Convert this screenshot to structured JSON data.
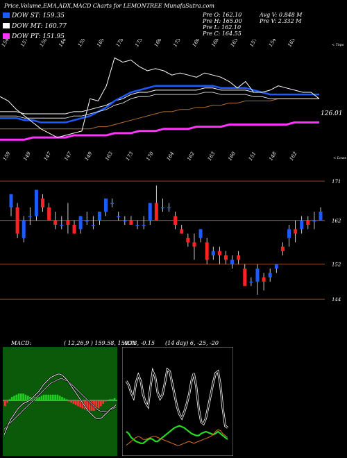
{
  "header": {
    "title": "Price,Volume,EMA,ADX,MACD Charts for LEMONTREE MunafaSutra.com",
    "indicators": [
      {
        "label": "DOW ST: 159.35",
        "color": "#1e5bff"
      },
      {
        "label": "DOW MT: 160.77",
        "color": "#ffffff"
      },
      {
        "label": "DOW PT: 151.95",
        "color": "#ff33ff"
      }
    ],
    "prev": [
      "Pre   O: 162.10",
      "Pre   H: 165.00",
      "Pre   L: 162.10",
      "Pre   C: 164.55"
    ],
    "stats": [
      "Avg V: 0.848 M",
      "Pre   V: 2.332  M"
    ]
  },
  "chart_data": [
    {
      "type": "line",
      "name": "price-ema-panel",
      "top_labels": [
        "154",
        "157",
        "150",
        "144",
        "159",
        "169",
        "178",
        "175",
        "166",
        "175",
        "166",
        "168",
        "163",
        "157",
        "154",
        "163"
      ],
      "bottom_labels": [
        "159",
        "149",
        "147",
        "147",
        "149",
        "163",
        "173",
        "170",
        "164",
        "162",
        "163",
        "160",
        "151",
        "148",
        "162"
      ],
      "corner_top": "< Tops",
      "corner_bottom": "< Lows",
      "last_value_label": "126.01",
      "series": [
        {
          "name": "price",
          "color": "#ffffff",
          "values": [
            158,
            156,
            152,
            149,
            146,
            143,
            141,
            139,
            140,
            141,
            142,
            157,
            156,
            163,
            176,
            174,
            175,
            172,
            170,
            171,
            170,
            168,
            169,
            168,
            167,
            169,
            168,
            167,
            165,
            162,
            165,
            160,
            160,
            161,
            163,
            162,
            161,
            160,
            160,
            157
          ]
        },
        {
          "name": "ema-short",
          "color": "#1e5bff",
          "values": [
            148,
            148,
            148,
            147,
            147,
            146,
            146,
            146,
            146,
            147,
            148,
            149,
            151,
            153,
            156,
            158,
            160,
            161,
            162,
            163,
            163,
            163,
            163,
            163,
            163,
            163,
            163,
            162,
            162,
            162,
            162,
            161,
            160,
            159,
            159,
            159,
            159,
            159,
            159,
            159
          ]
        },
        {
          "name": "ema-mid",
          "color": "#ffffff",
          "values": [
            151,
            151,
            151,
            150,
            150,
            150,
            150,
            150,
            150,
            151,
            151,
            152,
            153,
            154,
            156,
            157,
            159,
            160,
            160,
            161,
            161,
            161,
            161,
            161,
            161,
            162,
            162,
            161,
            161,
            161,
            161,
            160,
            160,
            159,
            159,
            159,
            159,
            159,
            159,
            159
          ]
        },
        {
          "name": "ema-long",
          "color": "#b07030",
          "values": [
            143,
            143,
            143,
            143,
            143,
            143,
            143,
            143,
            143,
            143,
            143,
            143,
            144,
            144,
            145,
            146,
            147,
            148,
            149,
            150,
            151,
            151,
            152,
            152,
            153,
            153,
            154,
            154,
            155,
            155,
            156,
            156,
            156,
            156,
            157,
            157,
            157,
            157,
            157,
            157
          ]
        },
        {
          "name": "ema-longest",
          "color": "#ff33ff",
          "values": [
            138,
            138,
            138,
            138,
            139,
            139,
            139,
            139,
            139,
            140,
            140,
            140,
            140,
            140,
            141,
            141,
            141,
            142,
            142,
            142,
            143,
            143,
            143,
            143,
            144,
            144,
            144,
            144,
            145,
            145,
            145,
            145,
            145,
            145,
            145,
            145,
            146,
            146,
            146,
            146
          ]
        }
      ]
    },
    {
      "type": "candlestick",
      "name": "candles-panel",
      "y_ticks": [
        "171",
        "162",
        "152",
        "144"
      ],
      "candles": [
        {
          "o": 165,
          "h": 168,
          "l": 163,
          "c": 168
        },
        {
          "o": 165,
          "h": 166,
          "l": 158,
          "c": 159
        },
        {
          "o": 158,
          "h": 163,
          "l": 157,
          "c": 162
        },
        {
          "o": 163,
          "h": 165,
          "l": 161,
          "c": 163
        },
        {
          "o": 163,
          "h": 169,
          "l": 162,
          "c": 169
        },
        {
          "o": 167,
          "h": 168,
          "l": 164,
          "c": 165
        },
        {
          "o": 165,
          "h": 166,
          "l": 162,
          "c": 162
        },
        {
          "o": 162,
          "h": 164,
          "l": 160,
          "c": 161
        },
        {
          "o": 161,
          "h": 163,
          "l": 160,
          "c": 161
        },
        {
          "o": 162,
          "h": 166,
          "l": 159,
          "c": 161
        },
        {
          "o": 161,
          "h": 162,
          "l": 159,
          "c": 159
        },
        {
          "o": 160,
          "h": 163,
          "l": 159,
          "c": 163
        },
        {
          "o": 162,
          "h": 164,
          "l": 161,
          "c": 162
        },
        {
          "o": 161,
          "h": 163,
          "l": 160,
          "c": 161
        },
        {
          "o": 162,
          "h": 164,
          "l": 161,
          "c": 164
        },
        {
          "o": 164,
          "h": 167,
          "l": 163,
          "c": 167
        },
        {
          "o": 166,
          "h": 167,
          "l": 165,
          "c": 166
        },
        {
          "o": 163,
          "h": 164,
          "l": 162,
          "c": 163
        },
        {
          "o": 162,
          "h": 163,
          "l": 161,
          "c": 162
        },
        {
          "o": 162,
          "h": 163,
          "l": 161,
          "c": 161
        },
        {
          "o": 161,
          "h": 162,
          "l": 160,
          "c": 161
        },
        {
          "o": 161,
          "h": 163,
          "l": 160,
          "c": 161
        },
        {
          "o": 162,
          "h": 166,
          "l": 161,
          "c": 166
        },
        {
          "o": 166,
          "h": 170,
          "l": 162,
          "c": 162
        },
        {
          "o": 165,
          "h": 167,
          "l": 164,
          "c": 165
        },
        {
          "o": 165,
          "h": 166,
          "l": 164,
          "c": 165
        },
        {
          "o": 163,
          "h": 164,
          "l": 160,
          "c": 161
        },
        {
          "o": 160,
          "h": 161,
          "l": 159,
          "c": 159
        },
        {
          "o": 158,
          "h": 159,
          "l": 156,
          "c": 157
        },
        {
          "o": 157,
          "h": 159,
          "l": 153,
          "c": 156
        },
        {
          "o": 158,
          "h": 160,
          "l": 157,
          "c": 160
        },
        {
          "o": 157,
          "h": 158,
          "l": 152,
          "c": 153
        },
        {
          "o": 154,
          "h": 156,
          "l": 153,
          "c": 155
        },
        {
          "o": 155,
          "h": 156,
          "l": 152,
          "c": 154
        },
        {
          "o": 154,
          "h": 155,
          "l": 152,
          "c": 153
        },
        {
          "o": 152,
          "h": 154,
          "l": 151,
          "c": 153
        },
        {
          "o": 154,
          "h": 155,
          "l": 152,
          "c": 153
        },
        {
          "o": 151,
          "h": 152,
          "l": 147,
          "c": 147
        },
        {
          "o": 148,
          "h": 149,
          "l": 147,
          "c": 148
        },
        {
          "o": 148,
          "h": 152,
          "l": 145,
          "c": 151
        },
        {
          "o": 149,
          "h": 150,
          "l": 146,
          "c": 148
        },
        {
          "o": 149,
          "h": 151,
          "l": 148,
          "c": 150
        },
        {
          "o": 151,
          "h": 152,
          "l": 150,
          "c": 152
        },
        {
          "o": 156,
          "h": 157,
          "l": 154,
          "c": 155
        },
        {
          "o": 158,
          "h": 161,
          "l": 156,
          "c": 160
        },
        {
          "o": 160,
          "h": 162,
          "l": 157,
          "c": 159
        },
        {
          "o": 160,
          "h": 163,
          "l": 159,
          "c": 162
        },
        {
          "o": 162,
          "h": 163,
          "l": 160,
          "c": 161
        },
        {
          "o": 162,
          "h": 164,
          "l": 160,
          "c": 162
        },
        {
          "o": 162,
          "h": 165,
          "l": 162,
          "c": 164
        }
      ]
    },
    {
      "type": "line",
      "name": "macd-panel",
      "label": "MACD:",
      "values_label": "( 12,26,9 ) 159.58,  159.73,  -0.15",
      "series": [
        {
          "name": "macd",
          "color": "#ffffff",
          "values": [
            -3,
            -2.5,
            -2,
            -1.6,
            -1.3,
            -1,
            -0.7,
            -0.5,
            -0.3,
            -0.2,
            -0.1,
            0,
            0.2,
            0.4,
            0.6,
            0.8,
            1.1,
            1.4,
            1.6,
            1.8,
            2,
            2.1,
            2.2,
            2.3,
            2.3,
            2.2,
            2,
            1.8,
            1.5,
            1.2,
            0.9,
            0.6,
            0.3,
            0,
            -0.3,
            -0.6,
            -0.9,
            -1.1,
            -1.3,
            -1.5,
            -1.6,
            -1.6,
            -1.5,
            -1.3,
            -1.1,
            -0.9,
            -0.7,
            -0.6,
            -0.4
          ]
        },
        {
          "name": "signal",
          "color": "#cccccc",
          "values": [
            -2.5,
            -2.3,
            -2.1,
            -1.9,
            -1.7,
            -1.5,
            -1.3,
            -1.1,
            -0.9,
            -0.7,
            -0.5,
            -0.3,
            -0.1,
            0.1,
            0.3,
            0.5,
            0.7,
            0.9,
            1.1,
            1.3,
            1.5,
            1.6,
            1.7,
            1.8,
            1.9,
            1.9,
            1.8,
            1.7,
            1.6,
            1.4,
            1.2,
            1,
            0.8,
            0.6,
            0.4,
            0.2,
            0,
            -0.2,
            -0.4,
            -0.6,
            -0.8,
            -0.9,
            -1,
            -1,
            -1,
            -0.9,
            -0.8,
            -0.7,
            -0.6
          ]
        },
        {
          "name": "histogram",
          "color_pos": "#22cc22",
          "color_neg": "#ff3333",
          "values": [
            -0.5,
            -0.2,
            0.1,
            0.3,
            0.4,
            0.5,
            0.6,
            0.6,
            0.6,
            0.5,
            0.4,
            0.3,
            0.3,
            0.3,
            0.3,
            0.3,
            0.4,
            0.5,
            0.5,
            0.5,
            0.5,
            0.5,
            0.5,
            0.5,
            0.4,
            0.3,
            0.2,
            0.1,
            -0.1,
            -0.2,
            -0.3,
            -0.4,
            -0.5,
            -0.6,
            -0.7,
            -0.8,
            -0.9,
            -0.9,
            -0.9,
            -0.9,
            -0.8,
            -0.7,
            -0.5,
            -0.3,
            -0.1,
            0,
            0.1,
            0.1,
            0.2
          ]
        }
      ],
      "ylim": [
        -4,
        4
      ]
    },
    {
      "type": "line",
      "name": "adx-panel",
      "label": "ADX",
      "values_label": "(14  day) 6,  -25,  -20",
      "series": [
        {
          "name": "adx",
          "color": "#ffffff",
          "values": [
            72,
            68,
            60,
            55,
            70,
            78,
            72,
            58,
            50,
            46,
            66,
            82,
            76,
            60,
            54,
            58,
            70,
            84,
            82,
            70,
            58,
            46,
            38,
            34,
            40,
            48,
            58,
            72,
            80,
            66,
            44,
            30,
            28,
            34,
            46,
            58,
            70,
            80,
            82,
            68,
            44,
            26,
            24
          ]
        },
        {
          "name": "plus-di",
          "color": "#22dd22",
          "values": [
            20,
            18,
            14,
            12,
            10,
            9,
            8,
            8,
            10,
            12,
            13,
            12,
            10,
            10,
            12,
            14,
            16,
            18,
            20,
            22,
            24,
            25,
            26,
            25,
            24,
            22,
            20,
            18,
            17,
            16,
            16,
            18,
            19,
            20,
            19,
            18,
            17,
            18,
            20,
            18,
            16,
            14,
            12
          ]
        },
        {
          "name": "minus-di",
          "color": "#e07020",
          "values": [
            6,
            8,
            10,
            12,
            14,
            15,
            14,
            12,
            12,
            13,
            14,
            15,
            15,
            14,
            13,
            12,
            11,
            10,
            9,
            8,
            7,
            6,
            6,
            7,
            8,
            9,
            10,
            9,
            8,
            9,
            10,
            11,
            12,
            13,
            14,
            15,
            17,
            20,
            22,
            21,
            18,
            16,
            14
          ]
        }
      ],
      "ylim": [
        0,
        100
      ]
    }
  ]
}
